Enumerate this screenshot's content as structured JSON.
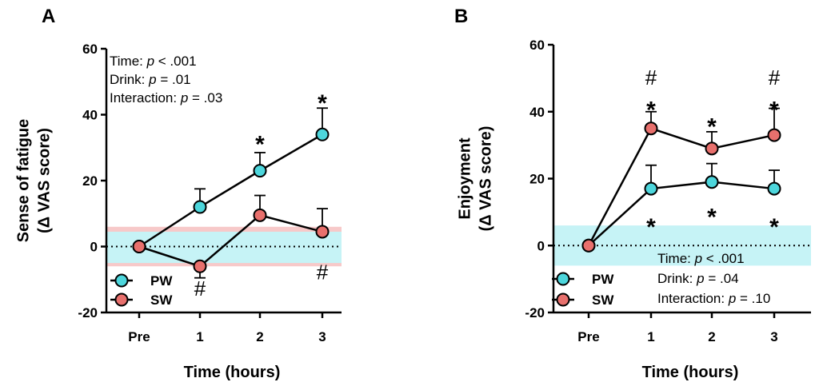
{
  "colors": {
    "pw": "#4dd6dc",
    "sw": "#e8706d",
    "band_pw": "#c6f3f6",
    "band_sw": "#f7c9c9",
    "axis": "#000000"
  },
  "chart_data": [
    {
      "type": "line",
      "panel": "A",
      "categories": [
        "Pre",
        "1",
        "2",
        "3"
      ],
      "xlabel": "Time (hours)",
      "ylabel": [
        "Sense of fatigue",
        "(Δ VAS score)"
      ],
      "ylim": [
        -20,
        60
      ],
      "yticks": [
        "-20",
        "0",
        "20",
        "40",
        "60"
      ],
      "reference_line": 0,
      "bands": [
        {
          "series": "SW",
          "range": [
            -6,
            6
          ]
        },
        {
          "series": "PW",
          "range": [
            -5,
            4.5
          ]
        }
      ],
      "series": [
        {
          "name": "PW",
          "values": [
            0,
            12,
            23,
            34
          ],
          "error": [
            null,
            5.5,
            5.5,
            8
          ]
        },
        {
          "name": "SW",
          "values": [
            0,
            -6,
            9.5,
            4.5
          ],
          "error": [
            null,
            3.5,
            6,
            7
          ]
        }
      ],
      "stats": [
        {
          "label": "Time: ",
          "p": "p",
          "rest": " < .001"
        },
        {
          "label": "Drink: ",
          "p": "p",
          "rest": " = .01"
        },
        {
          "label": "Interaction: ",
          "p": "p",
          "rest": " = .03"
        }
      ],
      "stats_position": "top-left",
      "legend": [
        "PW",
        "SW"
      ],
      "legend_position": "bottom-left",
      "annotations": [
        {
          "text": "*",
          "x": "2",
          "y": 32.5
        },
        {
          "text": "*",
          "x": "3",
          "y": 45
        },
        {
          "text": "#",
          "x": "1",
          "y": -13
        },
        {
          "text": "#",
          "x": "3",
          "y": -8
        }
      ]
    },
    {
      "type": "line",
      "panel": "B",
      "categories": [
        "Pre",
        "1",
        "2",
        "3"
      ],
      "xlabel": "Time (hours)",
      "ylabel": [
        "Enjoyment",
        "(Δ VAS score)"
      ],
      "ylim": [
        -20,
        60
      ],
      "yticks": [
        "-20",
        "0",
        "20",
        "40",
        "60"
      ],
      "reference_line": 0,
      "bands": [
        {
          "series": "PW",
          "range": [
            -6,
            6
          ]
        }
      ],
      "series": [
        {
          "name": "PW",
          "values": [
            0,
            17,
            19,
            17
          ],
          "error": [
            null,
            7,
            5.5,
            5.5
          ]
        },
        {
          "name": "SW",
          "values": [
            0,
            35,
            29,
            33
          ],
          "error": [
            null,
            5,
            5,
            8
          ]
        }
      ],
      "stats": [
        {
          "label": "Time: ",
          "p": "p",
          "rest": " < .001"
        },
        {
          "label": "Drink: ",
          "p": "p",
          "rest": " = .04"
        },
        {
          "label": "Interaction: ",
          "p": "p",
          "rest": " = .10"
        }
      ],
      "stats_position": "bottom-right",
      "legend": [
        "PW",
        "SW"
      ],
      "legend_position": "bottom-left",
      "annotations": [
        {
          "text": "#",
          "x": "1",
          "y": 50
        },
        {
          "text": "*",
          "x": "1",
          "y": 42
        },
        {
          "text": "*",
          "x": "2",
          "y": 37
        },
        {
          "text": "#",
          "x": "3",
          "y": 50
        },
        {
          "text": "*",
          "x": "3",
          "y": 42
        },
        {
          "text": "*",
          "x": "1",
          "y": 7
        },
        {
          "text": "*",
          "x": "2",
          "y": 10
        },
        {
          "text": "*",
          "x": "3",
          "y": 7
        }
      ]
    }
  ]
}
